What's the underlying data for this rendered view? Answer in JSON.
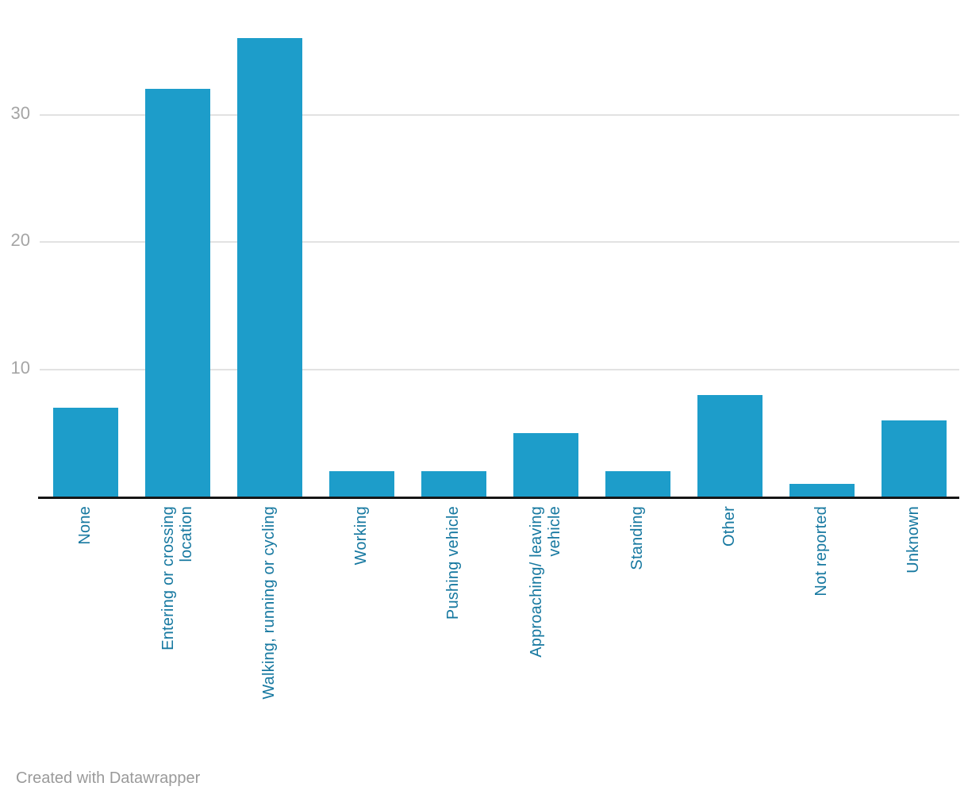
{
  "chart_data": {
    "type": "bar",
    "categories": [
      "None",
      "Entering or crossing location",
      "Walking, running or cycling",
      "Working",
      "Pushing vehicle",
      "Approaching/ leaving vehicle",
      "Standing",
      "Other",
      "Not reported",
      "Unknown"
    ],
    "category_label_lines": [
      [
        "None"
      ],
      [
        "Entering or crossing",
        "location"
      ],
      [
        "Walking, running or cycling"
      ],
      [
        "Working"
      ],
      [
        "Pushing vehicle"
      ],
      [
        "Approaching/ leaving",
        "vehicle"
      ],
      [
        "Standing"
      ],
      [
        "Other"
      ],
      [
        "Not reported"
      ],
      [
        "Unknown"
      ]
    ],
    "values": [
      7,
      32,
      36,
      2,
      2,
      5,
      2,
      8,
      1,
      6
    ],
    "xlabel": "",
    "ylabel": "",
    "ylim": [
      0,
      36.5
    ],
    "yticks": [
      10,
      20,
      30
    ],
    "grid": true,
    "legend": "none",
    "colors": {
      "bar": "#1d9dca",
      "category_label": "#1678a0",
      "tick_label": "#a5a5a5",
      "gridline": "#e2e2e2",
      "axis": "#161616",
      "credit": "#9a9a9a"
    }
  },
  "footer": {
    "credit": "Created with Datawrapper"
  }
}
